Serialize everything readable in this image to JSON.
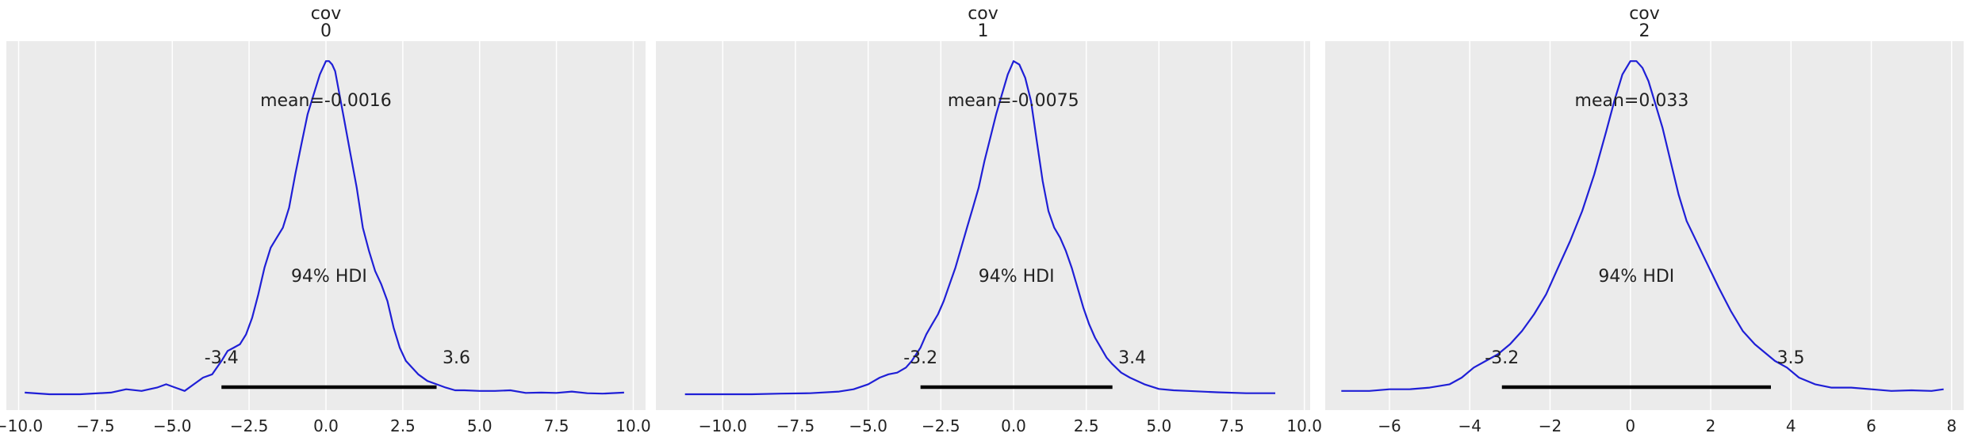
{
  "chart_data": [
    {
      "type": "line",
      "title_line1": "cov",
      "title_line2": "0",
      "xlim": [
        -10.4,
        10.4
      ],
      "xticks": [
        -10.0,
        -7.5,
        -5.0,
        -2.5,
        0.0,
        2.5,
        5.0,
        7.5,
        10.0
      ],
      "xtick_labels": [
        "−10.0",
        "−7.5",
        "−5.0",
        "−2.5",
        "0.0",
        "2.5",
        "5.0",
        "7.5",
        "10.0"
      ],
      "ymax": 1.06,
      "color": "#1f1fd6",
      "density": {
        "x": [
          -9.8,
          -9.0,
          -8.0,
          -7.0,
          -6.5,
          -6.0,
          -5.5,
          -5.2,
          -4.9,
          -4.6,
          -4.3,
          -4.0,
          -3.7,
          -3.4,
          -3.2,
          -3.0,
          -2.8,
          -2.6,
          -2.4,
          -2.2,
          -2.0,
          -1.8,
          -1.6,
          -1.4,
          -1.2,
          -1.0,
          -0.8,
          -0.6,
          -0.4,
          -0.2,
          0.0,
          0.1,
          0.2,
          0.3,
          0.4,
          0.6,
          0.8,
          1.0,
          1.2,
          1.4,
          1.6,
          1.8,
          2.0,
          2.2,
          2.4,
          2.6,
          2.8,
          3.0,
          3.3,
          3.6,
          3.9,
          4.2,
          4.5,
          5.0,
          5.5,
          6.0,
          6.5,
          7.0,
          7.5,
          8.0,
          8.5,
          9.0,
          9.7
        ],
        "y": [
          0.005,
          0.0,
          0.0,
          0.005,
          0.015,
          0.01,
          0.02,
          0.03,
          0.02,
          0.01,
          0.03,
          0.05,
          0.06,
          0.1,
          0.13,
          0.14,
          0.15,
          0.18,
          0.23,
          0.3,
          0.38,
          0.44,
          0.47,
          0.5,
          0.56,
          0.66,
          0.75,
          0.84,
          0.9,
          0.96,
          1.0,
          1.0,
          0.99,
          0.97,
          0.92,
          0.82,
          0.72,
          0.62,
          0.5,
          0.43,
          0.37,
          0.33,
          0.28,
          0.2,
          0.14,
          0.1,
          0.08,
          0.06,
          0.04,
          0.03,
          0.02,
          0.012,
          0.012,
          0.01,
          0.01,
          0.012,
          0.004,
          0.005,
          0.004,
          0.008,
          0.003,
          0.002,
          0.005
        ]
      },
      "mean_label": "mean=-0.0016",
      "mean_value": -0.0016,
      "hdi_label": "94% HDI",
      "hdi": [
        -3.4,
        3.6
      ],
      "hdi_low_label": "-3.4",
      "hdi_high_label": "3.6"
    },
    {
      "type": "line",
      "title_line1": "cov",
      "title_line2": "1",
      "xlim": [
        -12.3,
        10.2
      ],
      "xticks": [
        -10.0,
        -7.5,
        -5.0,
        -2.5,
        0.0,
        2.5,
        5.0,
        7.5,
        10.0
      ],
      "xtick_labels": [
        "−10.0",
        "−7.5",
        "−5.0",
        "−2.5",
        "0.0",
        "2.5",
        "5.0",
        "7.5",
        "10.0"
      ],
      "ymax": 1.06,
      "color": "#1f1fd6",
      "density": {
        "x": [
          -11.3,
          -10.0,
          -9.0,
          -8.0,
          -7.0,
          -6.0,
          -5.5,
          -5.0,
          -4.6,
          -4.3,
          -4.0,
          -3.7,
          -3.5,
          -3.2,
          -3.0,
          -2.8,
          -2.6,
          -2.4,
          -2.2,
          -2.0,
          -1.8,
          -1.6,
          -1.4,
          -1.2,
          -1.0,
          -0.8,
          -0.6,
          -0.4,
          -0.2,
          0.0,
          0.2,
          0.4,
          0.6,
          0.8,
          1.0,
          1.2,
          1.4,
          1.6,
          1.8,
          2.0,
          2.2,
          2.4,
          2.6,
          2.8,
          3.0,
          3.2,
          3.4,
          3.7,
          4.0,
          4.5,
          5.0,
          5.5,
          6.0,
          7.0,
          8.0,
          9.0
        ],
        "y": [
          0.0,
          0.0,
          0.0,
          0.002,
          0.003,
          0.008,
          0.015,
          0.03,
          0.05,
          0.06,
          0.065,
          0.08,
          0.1,
          0.14,
          0.18,
          0.21,
          0.24,
          0.28,
          0.33,
          0.38,
          0.44,
          0.5,
          0.56,
          0.62,
          0.7,
          0.77,
          0.84,
          0.9,
          0.96,
          1.0,
          0.99,
          0.95,
          0.88,
          0.76,
          0.64,
          0.55,
          0.5,
          0.47,
          0.43,
          0.38,
          0.32,
          0.26,
          0.21,
          0.17,
          0.14,
          0.11,
          0.09,
          0.065,
          0.05,
          0.03,
          0.016,
          0.012,
          0.01,
          0.006,
          0.003,
          0.003
        ]
      },
      "mean_label": "mean=-0.0075",
      "mean_value": -0.0075,
      "hdi_label": "94% HDI",
      "hdi": [
        -3.2,
        3.4
      ],
      "hdi_low_label": "-3.2",
      "hdi_high_label": "3.4"
    },
    {
      "type": "line",
      "title_line1": "cov",
      "title_line2": "2",
      "xlim": [
        -7.6,
        8.3
      ],
      "xticks": [
        -6,
        -4,
        -2,
        0,
        2,
        4,
        6,
        8
      ],
      "xtick_labels": [
        "−6",
        "−4",
        "−2",
        "0",
        "2",
        "4",
        "6",
        "8"
      ],
      "ymax": 1.06,
      "color": "#1f1fd6",
      "density": {
        "x": [
          -7.2,
          -6.5,
          -6.0,
          -5.5,
          -5.0,
          -4.5,
          -4.2,
          -3.9,
          -3.6,
          -3.3,
          -3.0,
          -2.7,
          -2.4,
          -2.1,
          -1.8,
          -1.5,
          -1.2,
          -0.9,
          -0.6,
          -0.4,
          -0.2,
          0.0,
          0.15,
          0.3,
          0.45,
          0.6,
          0.8,
          1.0,
          1.2,
          1.4,
          1.6,
          1.8,
          2.0,
          2.2,
          2.5,
          2.8,
          3.1,
          3.4,
          3.6,
          3.9,
          4.2,
          4.6,
          5.0,
          5.5,
          6.0,
          6.5,
          7.0,
          7.5,
          7.8
        ],
        "y": [
          0.01,
          0.01,
          0.015,
          0.015,
          0.02,
          0.03,
          0.05,
          0.08,
          0.1,
          0.12,
          0.15,
          0.19,
          0.24,
          0.3,
          0.38,
          0.46,
          0.55,
          0.66,
          0.79,
          0.88,
          0.96,
          1.0,
          1.0,
          0.98,
          0.94,
          0.88,
          0.8,
          0.7,
          0.6,
          0.52,
          0.47,
          0.42,
          0.37,
          0.32,
          0.25,
          0.19,
          0.15,
          0.12,
          0.1,
          0.08,
          0.05,
          0.03,
          0.02,
          0.02,
          0.015,
          0.01,
          0.012,
          0.01,
          0.015
        ]
      },
      "mean_label": "mean=0.033",
      "mean_value": 0.033,
      "hdi_label": "94% HDI",
      "hdi": [
        -3.2,
        3.5
      ],
      "hdi_low_label": "-3.2",
      "hdi_high_label": "3.5"
    }
  ]
}
